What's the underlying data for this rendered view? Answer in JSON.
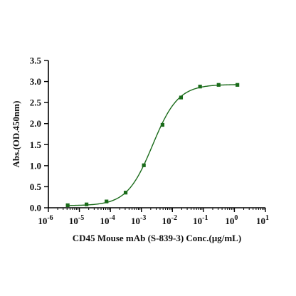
{
  "chart_data": {
    "type": "scatter",
    "xlabel": "CD45 Mouse mAb (S-839-3) Conc.(μg/mL)",
    "ylabel": "Abs.(OD.450nm)",
    "x_scale": "log10",
    "xlim": [
      1e-06,
      10
    ],
    "ylim": [
      0,
      3.5
    ],
    "x_ticks": [
      {
        "base": "10",
        "exp": "-6"
      },
      {
        "base": "10",
        "exp": "-5"
      },
      {
        "base": "10",
        "exp": "-4"
      },
      {
        "base": "10",
        "exp": "-3"
      },
      {
        "base": "10",
        "exp": "-2"
      },
      {
        "base": "10",
        "exp": "-1"
      },
      {
        "base": "10",
        "exp": "0"
      },
      {
        "base": "10",
        "exp": "1"
      }
    ],
    "y_ticks": [
      "0.0",
      "0.5",
      "1.0",
      "1.5",
      "2.0",
      "2.5",
      "3.0",
      "3.5"
    ],
    "grid": false,
    "color": "#1a6b1a",
    "series": [
      {
        "marker": "square",
        "x": [
          4.2e-06,
          1.7e-05,
          7.5e-05,
          0.00031,
          0.0012,
          0.0048,
          0.019,
          0.078,
          0.31,
          1.25
        ],
        "y": [
          0.06,
          0.08,
          0.15,
          0.36,
          1.01,
          1.97,
          2.62,
          2.88,
          2.92,
          2.92
        ]
      }
    ],
    "fit_curve": {
      "model": "4PL",
      "bottom": 0.05,
      "top": 2.93,
      "ec50": 0.0023,
      "hill": 1.05,
      "x_range": [
        4.2e-06,
        1.25
      ]
    }
  }
}
